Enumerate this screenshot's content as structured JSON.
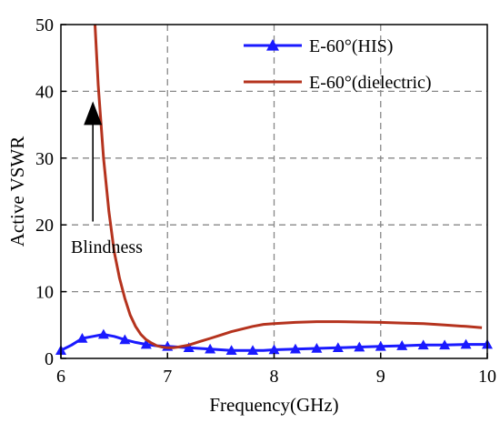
{
  "chart_data": {
    "type": "line",
    "title": "",
    "xlabel": "Frequency(GHz)",
    "ylabel": "Active VSWR",
    "xlim": [
      6,
      10
    ],
    "ylim": [
      0,
      50
    ],
    "x_ticks": [
      "6",
      "7",
      "8",
      "9",
      "10"
    ],
    "y_ticks": [
      "0",
      "10",
      "20",
      "30",
      "40",
      "50"
    ],
    "grid": "dashed",
    "legend_position": "top-right",
    "series": [
      {
        "name": "E-60°(HIS)",
        "color": "#1a1aff",
        "marker": "triangle",
        "x": [
          6.0,
          6.1,
          6.2,
          6.3,
          6.4,
          6.5,
          6.6,
          6.7,
          6.8,
          6.9,
          7.0,
          7.1,
          7.2,
          7.3,
          7.4,
          7.5,
          7.6,
          7.7,
          7.8,
          7.9,
          8.0,
          8.2,
          8.4,
          8.6,
          8.8,
          9.0,
          9.2,
          9.4,
          9.6,
          9.8,
          10.0
        ],
        "y": [
          1.2,
          2.0,
          3.0,
          3.3,
          3.6,
          3.3,
          2.8,
          2.4,
          2.1,
          1.9,
          1.8,
          1.7,
          1.6,
          1.5,
          1.4,
          1.3,
          1.2,
          1.2,
          1.2,
          1.2,
          1.3,
          1.4,
          1.5,
          1.6,
          1.7,
          1.8,
          1.9,
          2.0,
          2.0,
          2.1,
          2.1
        ],
        "marker_x": [
          6.0,
          6.2,
          6.4,
          6.6,
          6.8,
          7.0,
          7.2,
          7.4,
          7.6,
          7.8,
          8.0,
          8.2,
          8.4,
          8.6,
          8.8,
          9.0,
          9.2,
          9.4,
          9.6,
          9.8,
          10.0
        ]
      },
      {
        "name": "E-60°(dielectric)",
        "color": "#b5331e",
        "marker": "none",
        "x": [
          6.32,
          6.35,
          6.4,
          6.45,
          6.5,
          6.55,
          6.6,
          6.65,
          6.7,
          6.75,
          6.8,
          6.85,
          6.9,
          6.95,
          7.0,
          7.05,
          7.1,
          7.2,
          7.3,
          7.4,
          7.5,
          7.6,
          7.7,
          7.8,
          7.9,
          8.0,
          8.2,
          8.4,
          8.6,
          8.8,
          9.0,
          9.2,
          9.4,
          9.6,
          9.8,
          9.95
        ],
        "y": [
          50,
          41,
          30,
          22,
          16,
          12,
          9,
          6.5,
          4.8,
          3.6,
          2.8,
          2.3,
          1.9,
          1.7,
          1.6,
          1.6,
          1.7,
          2.0,
          2.5,
          3.0,
          3.5,
          4.0,
          4.4,
          4.8,
          5.1,
          5.2,
          5.4,
          5.5,
          5.5,
          5.45,
          5.4,
          5.3,
          5.2,
          5.0,
          4.8,
          4.6
        ]
      }
    ],
    "annotations": [
      {
        "text": "Blindness",
        "arrow_from": [
          6.3,
          20.5
        ],
        "arrow_to": [
          6.3,
          38.5
        ]
      }
    ]
  }
}
